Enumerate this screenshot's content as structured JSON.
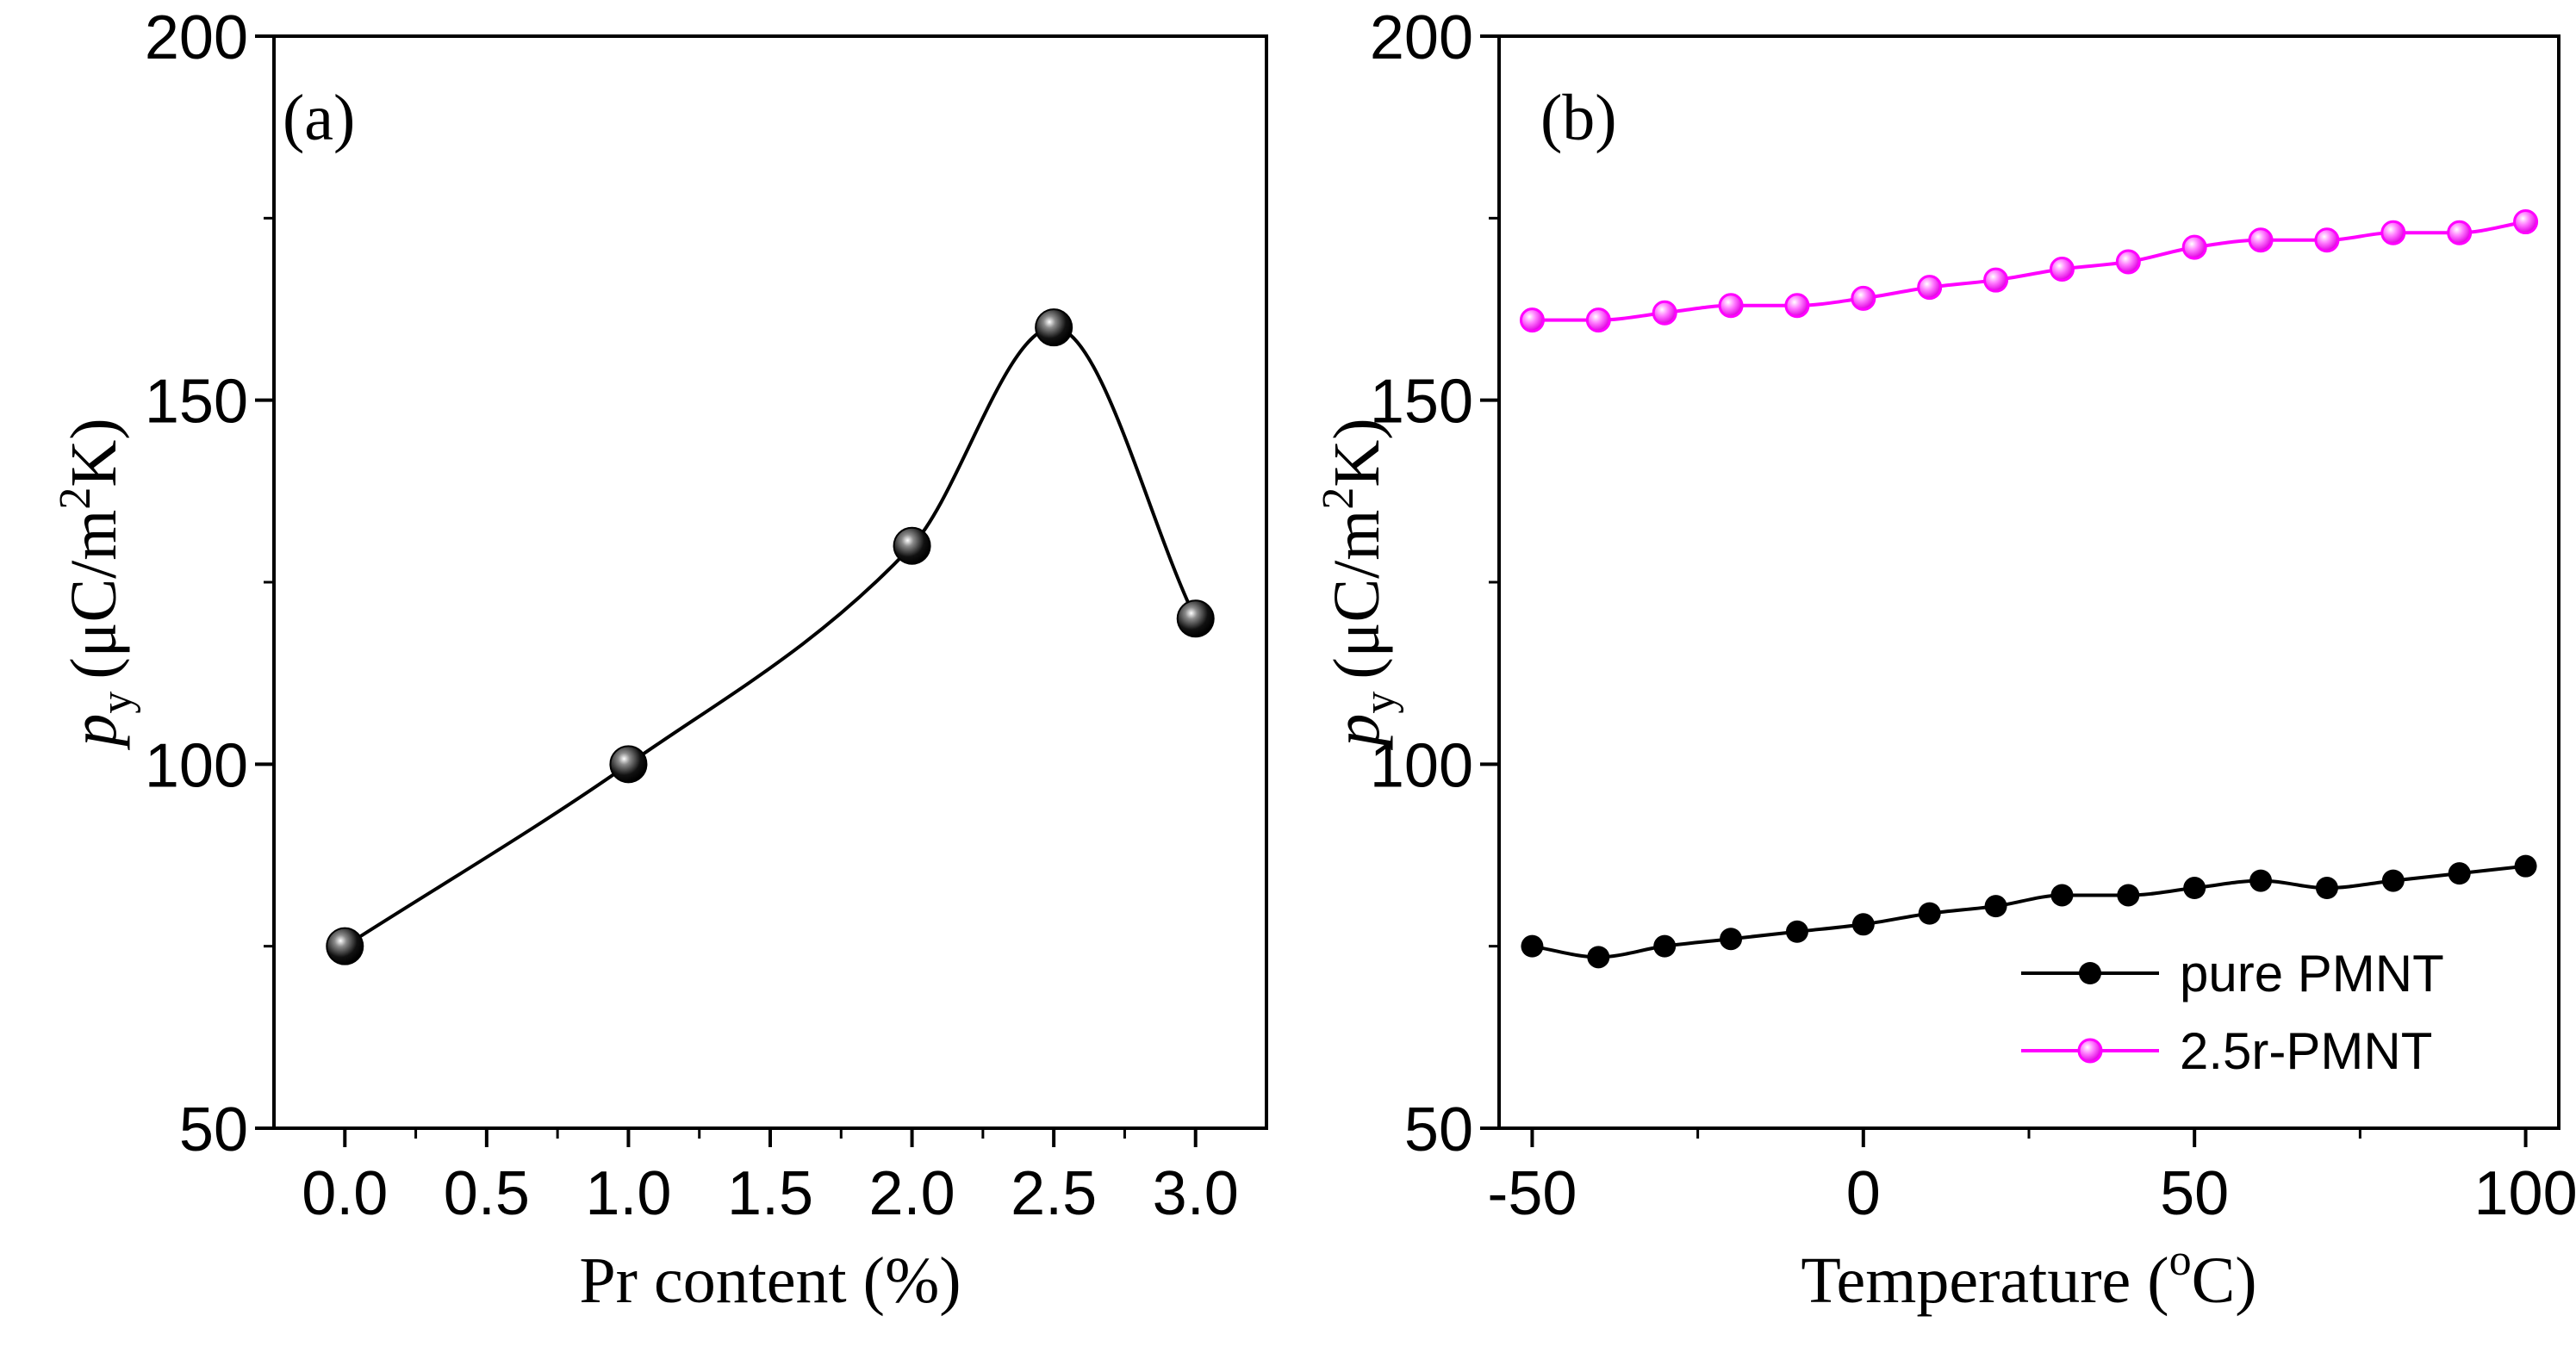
{
  "chart_data": [
    {
      "type": "line",
      "panel_label": "(a)",
      "xlabel": "Pr content (%)",
      "ylabel_symbol": "p",
      "ylabel_subscript": "y",
      "ylabel_units": "(μC/m",
      "ylabel_units_sup": "2",
      "ylabel_units_end": "K)",
      "xlim": [
        -0.25,
        3.25
      ],
      "ylim": [
        50,
        200
      ],
      "xticks": [
        0.0,
        0.5,
        1.0,
        1.5,
        2.0,
        2.5,
        3.0
      ],
      "xtick_labels": [
        "0.0",
        "0.5",
        "1.0",
        "1.5",
        "2.0",
        "2.5",
        "3.0"
      ],
      "yticks": [
        50,
        100,
        150,
        200
      ],
      "ytick_labels": [
        "50",
        "100",
        "150",
        "200"
      ],
      "series": [
        {
          "name": "",
          "color": "#000000",
          "marker": "sphere",
          "smooth": true,
          "x": [
            0.0,
            1.0,
            2.0,
            2.5,
            3.0
          ],
          "y": [
            75,
            100,
            130,
            160,
            120
          ]
        }
      ]
    },
    {
      "type": "line",
      "panel_label": "(b)",
      "xlabel_main": "Temperature (",
      "xlabel_sup": "o",
      "xlabel_end": "C)",
      "ylabel_symbol": "p",
      "ylabel_subscript": "y",
      "ylabel_units": "(μC/m",
      "ylabel_units_sup": "2",
      "ylabel_units_end": "K)",
      "xlim": [
        -55,
        105
      ],
      "ylim": [
        50,
        200
      ],
      "xticks": [
        -50,
        0,
        50,
        100
      ],
      "xtick_labels": [
        "-50",
        "0",
        "50",
        "100"
      ],
      "yticks": [
        50,
        100,
        150,
        200
      ],
      "ytick_labels": [
        "50",
        "100",
        "150",
        "200"
      ],
      "legend_position": "bottom-right",
      "series": [
        {
          "name": "pure PMNT",
          "color": "#000000",
          "marker": "circle",
          "x": [
            -50,
            -40,
            -30,
            -20,
            -10,
            0,
            10,
            20,
            30,
            40,
            50,
            60,
            70,
            80,
            90,
            100
          ],
          "y": [
            75,
            73.5,
            75,
            76,
            77,
            78,
            79.5,
            80.5,
            82,
            82,
            83,
            84,
            83,
            84,
            85,
            86
          ]
        },
        {
          "name": "2.5r-PMNT",
          "color": "#ff00ff",
          "marker": "circle",
          "x": [
            -50,
            -40,
            -30,
            -20,
            -10,
            0,
            10,
            20,
            30,
            40,
            50,
            60,
            70,
            80,
            90,
            100
          ],
          "y": [
            161,
            161,
            162,
            163,
            163,
            164,
            165.5,
            166.5,
            168,
            169,
            171,
            172,
            172,
            173,
            173,
            174.5
          ]
        }
      ]
    }
  ]
}
